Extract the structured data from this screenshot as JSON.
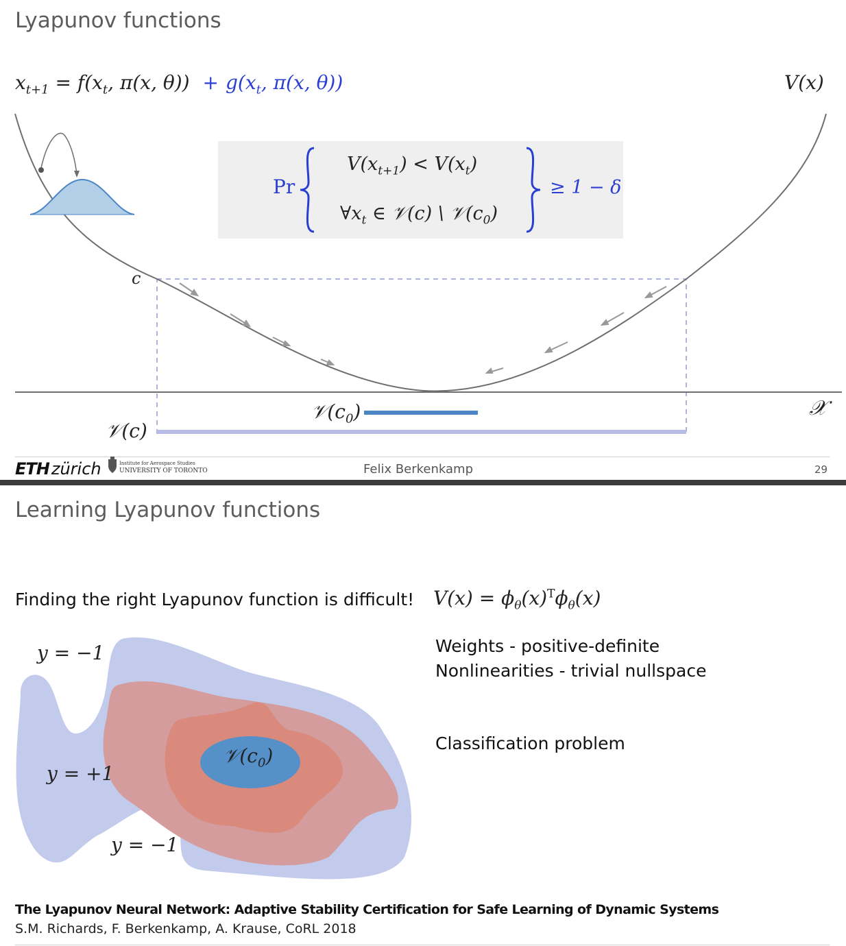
{
  "slide1": {
    "title": "Lyapunov functions",
    "equation": {
      "lhs": "x",
      "lhs_sub": "t+1",
      "eq_f": " = f(x",
      "f_sub": "t",
      "f_rest": ", π(x, θ))",
      "plus": "+",
      "g_part": "g(x",
      "g_sub": "t",
      "g_rest": ", π(x, θ))"
    },
    "v_label": "V(x)",
    "prob_box": {
      "pr": "Pr",
      "top_line": "V(x",
      "top_sub": "t+1",
      "top_rest": ") < V(x",
      "top_sub2": "t",
      "top_end": ")",
      "bottom_line": "∀x",
      "bottom_sub": "t",
      "bottom_rest": " ∈ 𝒱(c) \\ 𝒱(c",
      "bottom_sub2": "0",
      "bottom_end": ")",
      "rhs": "≥ 1 − δ"
    },
    "c_label": "c",
    "x_axis_label": "𝒳",
    "v_c0_label": "𝒱(c",
    "v_c0_sub": "0",
    "v_c0_end": ")",
    "v_c_label": "𝒱(c)",
    "footer": {
      "eth_bold": "ETH",
      "eth_rest": "zürich",
      "uoft_line1": "Institute for Aerospace Studies",
      "uoft_line2": "UNIVERSITY OF TORONTO",
      "presenter": "Felix Berkenkamp",
      "page": "29"
    },
    "colors": {
      "curve": "#6e6e6e",
      "dashed_box": "#aeb3dd",
      "v_c_bar": "#b7bde6",
      "v_c0_bar": "#4a86c6",
      "gaussian_fill": "#b3cfe8",
      "gaussian_stroke": "#4a86c6"
    }
  },
  "slide2": {
    "title": "Learning Lyapunov functions",
    "statement": "Finding the right Lyapunov function is difficult!",
    "formula": {
      "lhs": "V(x) = ϕ",
      "sub1": "θ",
      "mid": "(x)",
      "sup": "T",
      "rhs": "ϕ",
      "sub2": "θ",
      "end": "(x)"
    },
    "bullets": [
      "Weights - positive-definite",
      "Nonlinearities - trivial nullspace"
    ],
    "classification": "Classification problem",
    "region_labels": {
      "top_neg": "y = −1",
      "pos": "y = +1",
      "bottom_neg": "y = −1",
      "center": "𝒱(c",
      "center_sub": "0",
      "center_end": ")"
    },
    "reference": {
      "title": "The Lyapunov Neural Network: Adaptive Stability Certification for Safe Learning of Dynamic Systems",
      "authors": "S.M. Richards, F. Berkenkamp, A. Krause, CoRL 2018"
    },
    "colors": {
      "outer_blob": "#c2cbeb",
      "mid_blob": "#d49c9c",
      "inner_blob": "#d98a7c",
      "center_ellipse": "#5590c8"
    }
  }
}
